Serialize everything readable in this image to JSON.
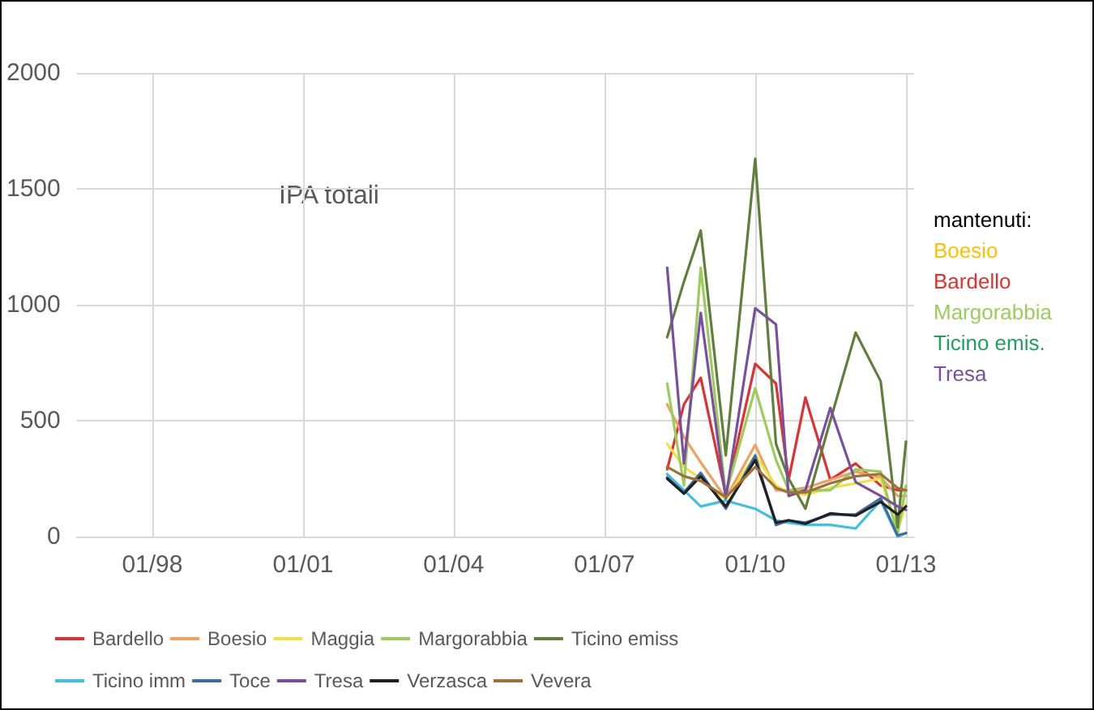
{
  "chart_data": {
    "type": "line",
    "x": [
      "2008-04",
      "2008-08",
      "2008-12",
      "2009-06",
      "2010-01",
      "2010-06",
      "2010-09",
      "2011-01",
      "2011-07",
      "2012-01",
      "2012-07",
      "2012-11",
      "2013-01"
    ],
    "series": [
      {
        "name": "Bardello",
        "color": "#e03030",
        "values": [
          290,
          570,
          685,
          180,
          745,
          660,
          245,
          600,
          245,
          315,
          220,
          200,
          200
        ]
      },
      {
        "name": "Boesio",
        "color": "#f0a060",
        "values": [
          570,
          430,
          320,
          165,
          395,
          200,
          200,
          210,
          245,
          280,
          255,
          175,
          175
        ]
      },
      {
        "name": "Maggia",
        "color": "#f0e040",
        "values": [
          400,
          300,
          250,
          160,
          350,
          220,
          190,
          180,
          210,
          230,
          250,
          30,
          140
        ]
      },
      {
        "name": "Margorabbia",
        "color": "#9acd5a",
        "values": [
          660,
          220,
          1160,
          180,
          640,
          330,
          200,
          200,
          200,
          290,
          280,
          10,
          220
        ]
      },
      {
        "name": "Ticino emiss",
        "color": "#5f7f3a",
        "values": [
          860,
          1100,
          1320,
          350,
          1630,
          400,
          250,
          120,
          500,
          880,
          670,
          40,
          410
        ]
      },
      {
        "name": "Ticino imm",
        "color": "#40c0e0",
        "values": [
          270,
          200,
          130,
          155,
          120,
          70,
          60,
          50,
          50,
          35,
          155,
          0,
          15
        ]
      },
      {
        "name": "Toce",
        "color": "#3f6e9e",
        "values": [
          255,
          190,
          275,
          120,
          350,
          50,
          70,
          60,
          95,
          95,
          165,
          5,
          15
        ]
      },
      {
        "name": "Tresa",
        "color": "#7b4fa0",
        "values": [
          1160,
          315,
          965,
          165,
          985,
          915,
          175,
          200,
          555,
          235,
          175,
          130,
          115
        ]
      },
      {
        "name": "Verzasca",
        "color": "#202020",
        "values": [
          250,
          185,
          260,
          130,
          330,
          60,
          70,
          55,
          100,
          90,
          150,
          95,
          130
        ]
      },
      {
        "name": "Vevera",
        "color": "#a0703a",
        "values": [
          300,
          260,
          240,
          170,
          300,
          210,
          190,
          190,
          230,
          260,
          270,
          210,
          200
        ]
      }
    ],
    "xlim": [
      "1996-07",
      "2013-03"
    ],
    "xticks": [
      {
        "value": "1998-01",
        "label": "01/98"
      },
      {
        "value": "2001-01",
        "label": "01/01"
      },
      {
        "value": "2004-01",
        "label": "01/04"
      },
      {
        "value": "2007-01",
        "label": "01/07"
      },
      {
        "value": "2010-01",
        "label": "01/10"
      },
      {
        "value": "2013-01",
        "label": "01/13"
      }
    ],
    "ylim": [
      0,
      2000
    ],
    "yticks": [
      0,
      500,
      1000,
      1500,
      2000
    ],
    "grid": true,
    "legend": "bottom",
    "marker": "none",
    "line_style": "solid",
    "annotations": [
      "IPA totali",
      "mantenuti:",
      "Boesio",
      "Bardello",
      "Margorabbia",
      "Ticino emis.",
      "Tresa"
    ]
  }
}
